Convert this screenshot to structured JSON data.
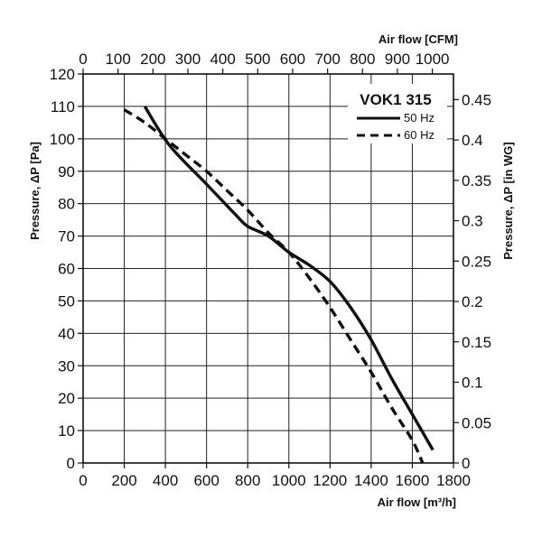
{
  "chart_data": {
    "type": "line",
    "title": "VOK1 315",
    "xlabel": "Air flow [m³/h]",
    "ylabel": "Pressure, ΔP [Pa]",
    "xlabel_top": "Air flow [CFM]",
    "ylabel_right": "Pressure, ΔP [in WG]",
    "xlim": [
      0,
      1800
    ],
    "ylim": [
      0,
      120
    ],
    "xlim_top": [
      0,
      1060.5
    ],
    "ylim_right": [
      0,
      0.4817
    ],
    "x_ticks": [
      "0",
      "200",
      "400",
      "600",
      "800",
      "1000",
      "1200",
      "1400",
      "1600",
      "1800"
    ],
    "y_ticks": [
      "0",
      "10",
      "20",
      "30",
      "40",
      "50",
      "60",
      "70",
      "80",
      "90",
      "100",
      "110",
      "120"
    ],
    "x_ticks_top": [
      "0",
      "100",
      "200",
      "300",
      "400",
      "500",
      "600",
      "700",
      "800",
      "900",
      "1000"
    ],
    "y_ticks_right": [
      "0",
      "0.05",
      "0.1",
      "0.15",
      "0.2",
      "0.25",
      "0.3",
      "0.35",
      "0.4",
      "0.45"
    ],
    "grid": true,
    "legend_position": "top-right",
    "series": [
      {
        "name": "50 Hz",
        "style": "solid",
        "x": [
          300,
          420,
          600,
          750,
          800,
          900,
          1000,
          1100,
          1200,
          1300,
          1400,
          1500,
          1600,
          1700
        ],
        "y": [
          110,
          98,
          86,
          76,
          73,
          70,
          65,
          61,
          56,
          48,
          38,
          26,
          15,
          4
        ]
      },
      {
        "name": "60 Hz",
        "style": "dashed",
        "x": [
          200,
          300,
          400,
          500,
          600,
          700,
          800,
          900,
          1000,
          1100,
          1200,
          1300,
          1400,
          1500,
          1600,
          1650
        ],
        "y": [
          109,
          105,
          100,
          95,
          90,
          84,
          78,
          71,
          65,
          57,
          48,
          38,
          28,
          17,
          7,
          0
        ]
      }
    ]
  }
}
